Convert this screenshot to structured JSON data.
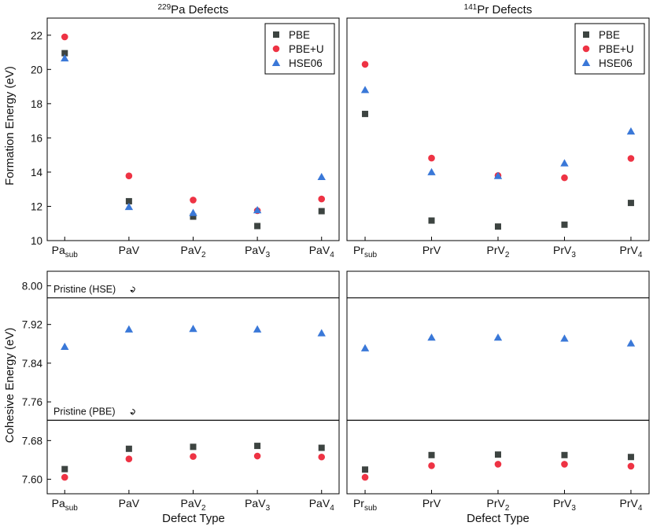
{
  "colors": {
    "PBE": "#3d4441",
    "PBE+U": "#ee3344",
    "HSE06": "#3a78d8"
  },
  "shared": {
    "xlabel": "Defect Type",
    "ylabel_top": "Formation Energy (eV)",
    "ylabel_bottom": "Cohesive Energy (eV)"
  },
  "chart_data": [
    {
      "id": "pa-formation",
      "type": "scatter",
      "title": "229Pa Defects",
      "title_sup": "229",
      "title_main": "Pa Defects",
      "ylabel": "Formation Energy (eV)",
      "ylim": [
        10,
        23
      ],
      "yticks": [
        10,
        12,
        14,
        16,
        18,
        20,
        22
      ],
      "yformat": 0,
      "categories": [
        {
          "base": "Pa",
          "sub": "sub"
        },
        {
          "base": "PaV",
          "sub": ""
        },
        {
          "base": "PaV",
          "sub": "2"
        },
        {
          "base": "PaV",
          "sub": "3"
        },
        {
          "base": "PaV",
          "sub": "4"
        }
      ],
      "legend": "top-right",
      "series": [
        {
          "name": "PBE",
          "marker": "square",
          "values": [
            20.95,
            12.3,
            11.4,
            10.85,
            11.72
          ]
        },
        {
          "name": "PBE+U",
          "marker": "circle",
          "values": [
            21.9,
            13.78,
            12.37,
            11.75,
            12.43
          ]
        },
        {
          "name": "HSE06",
          "marker": "triangle",
          "values": [
            20.65,
            11.97,
            11.62,
            11.78,
            13.72
          ]
        }
      ]
    },
    {
      "id": "pr-formation",
      "type": "scatter",
      "title": "141Pr Defects",
      "title_sup": "141",
      "title_main": "Pr Defects",
      "ylabel": "",
      "ylim": [
        10,
        23
      ],
      "yticks": [],
      "yformat": 0,
      "categories": [
        {
          "base": "Pr",
          "sub": "sub"
        },
        {
          "base": "PrV",
          "sub": ""
        },
        {
          "base": "PrV",
          "sub": "2"
        },
        {
          "base": "PrV",
          "sub": "3"
        },
        {
          "base": "PrV",
          "sub": "4"
        }
      ],
      "legend": "top-right",
      "series": [
        {
          "name": "PBE",
          "marker": "square",
          "values": [
            17.4,
            11.17,
            10.82,
            10.93,
            12.2
          ]
        },
        {
          "name": "PBE+U",
          "marker": "circle",
          "values": [
            20.3,
            14.82,
            13.8,
            13.67,
            14.8
          ]
        },
        {
          "name": "HSE06",
          "marker": "triangle",
          "values": [
            18.8,
            14.0,
            13.78,
            14.52,
            16.38
          ]
        }
      ]
    },
    {
      "id": "pa-cohesive",
      "type": "scatter",
      "title": "",
      "ylabel": "Cohesive Energy (eV)",
      "ylim": [
        7.57,
        8.03
      ],
      "yticks": [
        7.6,
        7.68,
        7.76,
        7.84,
        7.92,
        8.0
      ],
      "yformat": 2,
      "categories": [
        {
          "base": "Pa",
          "sub": "sub"
        },
        {
          "base": "PaV",
          "sub": ""
        },
        {
          "base": "PaV",
          "sub": "2"
        },
        {
          "base": "PaV",
          "sub": "3"
        },
        {
          "base": "PaV",
          "sub": "4"
        }
      ],
      "reference_lines": [
        {
          "label": "Pristine (HSE)",
          "value": 7.975
        },
        {
          "label": "Pristine (PBE)",
          "value": 7.722
        }
      ],
      "series": [
        {
          "name": "PBE",
          "marker": "square",
          "values": [
            7.621,
            7.663,
            7.667,
            7.669,
            7.665
          ]
        },
        {
          "name": "PBE+U",
          "marker": "circle",
          "values": [
            7.604,
            7.642,
            7.647,
            7.648,
            7.646
          ]
        },
        {
          "name": "HSE06",
          "marker": "triangle",
          "values": [
            7.874,
            7.91,
            7.911,
            7.91,
            7.902
          ]
        }
      ]
    },
    {
      "id": "pr-cohesive",
      "type": "scatter",
      "title": "",
      "ylabel": "",
      "ylim": [
        7.57,
        8.03
      ],
      "yticks": [],
      "yformat": 2,
      "categories": [
        {
          "base": "Pr",
          "sub": "sub"
        },
        {
          "base": "PrV",
          "sub": ""
        },
        {
          "base": "PrV",
          "sub": "2"
        },
        {
          "base": "PrV",
          "sub": "3"
        },
        {
          "base": "PrV",
          "sub": "4"
        }
      ],
      "reference_lines": [
        {
          "label": "",
          "value": 7.975
        },
        {
          "label": "",
          "value": 7.722
        }
      ],
      "series": [
        {
          "name": "PBE",
          "marker": "square",
          "values": [
            7.62,
            7.65,
            7.651,
            7.65,
            7.646
          ]
        },
        {
          "name": "PBE+U",
          "marker": "circle",
          "values": [
            7.604,
            7.628,
            7.631,
            7.631,
            7.627
          ]
        },
        {
          "name": "HSE06",
          "marker": "triangle",
          "values": [
            7.871,
            7.893,
            7.893,
            7.891,
            7.881
          ]
        }
      ]
    }
  ]
}
